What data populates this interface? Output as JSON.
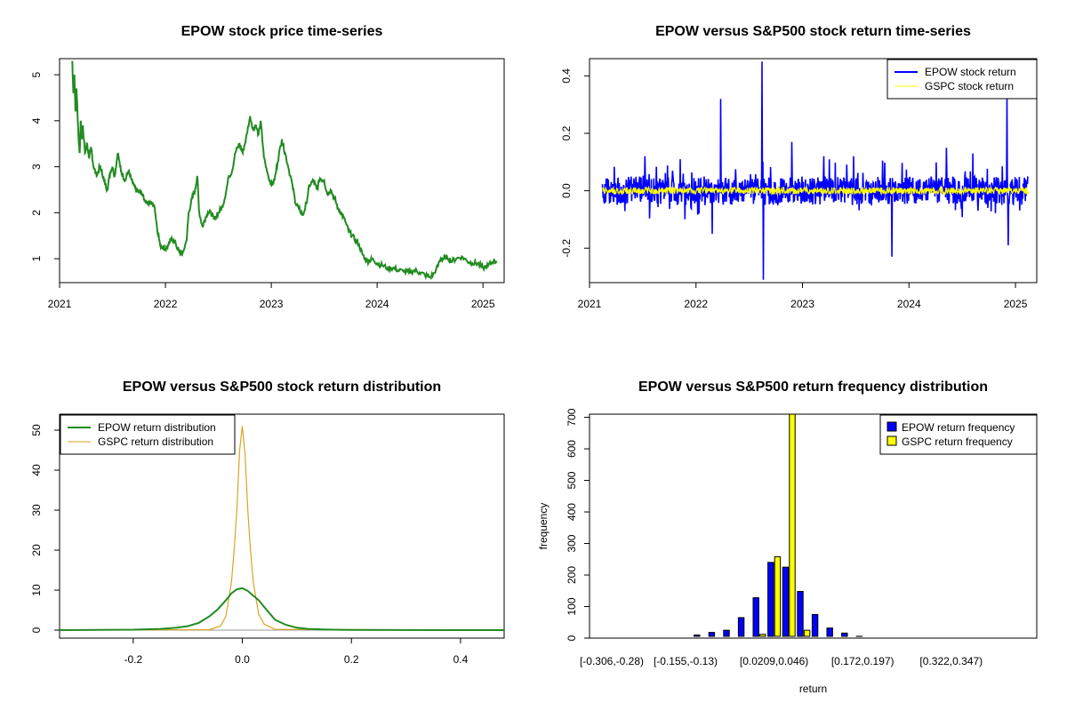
{
  "chart_data": [
    {
      "id": "price",
      "type": "line",
      "title": "EPOW stock price time-series",
      "xlim": [
        2021.0,
        2025.2
      ],
      "ylim": [
        0.48,
        5.35
      ],
      "xticks": [
        2021,
        2022,
        2023,
        2024,
        2025
      ],
      "yticks": [
        1,
        2,
        3,
        4,
        5
      ],
      "series": [
        {
          "color": "#228B22",
          "x": [
            2021.12,
            2021.13,
            2021.14,
            2021.15,
            2021.16,
            2021.18,
            2021.19,
            2021.2,
            2021.21,
            2021.22,
            2021.24,
            2021.26,
            2021.28,
            2021.3,
            2021.32,
            2021.35,
            2021.38,
            2021.4,
            2021.42,
            2021.45,
            2021.48,
            2021.5,
            2021.52,
            2021.55,
            2021.58,
            2021.6,
            2021.62,
            2021.65,
            2021.68,
            2021.7,
            2021.72,
            2021.75,
            2021.78,
            2021.8,
            2021.82,
            2021.85,
            2021.88,
            2021.9,
            2021.92,
            2021.95,
            2021.98,
            2022.0,
            2022.03,
            2022.06,
            2022.1,
            2022.13,
            2022.16,
            2022.2,
            2022.22,
            2022.25,
            2022.28,
            2022.3,
            2022.32,
            2022.35,
            2022.38,
            2022.4,
            2022.43,
            2022.46,
            2022.5,
            2022.53,
            2022.56,
            2022.6,
            2022.63,
            2022.66,
            2022.7,
            2022.73,
            2022.76,
            2022.8,
            2022.83,
            2022.85,
            2022.88,
            2022.9,
            2022.93,
            2022.96,
            2023.0,
            2023.03,
            2023.06,
            2023.1,
            2023.13,
            2023.16,
            2023.2,
            2023.23,
            2023.26,
            2023.3,
            2023.33,
            2023.36,
            2023.4,
            2023.43,
            2023.46,
            2023.5,
            2023.53,
            2023.56,
            2023.6,
            2023.63,
            2023.66,
            2023.7,
            2023.73,
            2023.76,
            2023.8,
            2023.83,
            2023.86,
            2023.9,
            2023.93,
            2023.96,
            2024.0,
            2024.05,
            2024.1,
            2024.15,
            2024.2,
            2024.25,
            2024.3,
            2024.35,
            2024.4,
            2024.45,
            2024.5,
            2024.55,
            2024.6,
            2024.63,
            2024.66,
            2024.7,
            2024.75,
            2024.8,
            2024.85,
            2024.9,
            2024.95,
            2025.0,
            2025.05,
            2025.1,
            2025.13
          ],
          "y": [
            5.3,
            4.6,
            5.0,
            4.2,
            4.7,
            3.6,
            3.3,
            4.0,
            3.6,
            3.9,
            3.3,
            3.5,
            3.2,
            3.4,
            3.0,
            2.8,
            3.0,
            2.9,
            2.7,
            2.5,
            2.9,
            3.0,
            2.8,
            3.3,
            2.9,
            2.8,
            2.7,
            2.9,
            2.7,
            2.6,
            2.5,
            2.45,
            2.4,
            2.3,
            2.25,
            2.2,
            2.2,
            2.1,
            1.7,
            1.3,
            1.25,
            1.2,
            1.3,
            1.45,
            1.3,
            1.15,
            1.1,
            1.4,
            2.0,
            2.3,
            2.5,
            2.8,
            2.0,
            1.7,
            1.9,
            2.0,
            2.0,
            1.85,
            2.0,
            2.1,
            2.3,
            2.8,
            2.9,
            3.3,
            3.5,
            3.3,
            3.6,
            4.1,
            3.8,
            3.9,
            3.7,
            4.0,
            3.2,
            2.9,
            2.6,
            2.7,
            3.1,
            3.6,
            3.3,
            3.0,
            2.6,
            2.2,
            2.1,
            1.95,
            2.2,
            2.6,
            2.7,
            2.5,
            2.75,
            2.7,
            2.4,
            2.5,
            2.3,
            2.1,
            2.0,
            1.8,
            1.6,
            1.5,
            1.4,
            1.3,
            1.1,
            0.95,
            0.95,
            1.0,
            0.9,
            0.85,
            0.8,
            0.8,
            0.75,
            0.72,
            0.7,
            0.75,
            0.7,
            0.65,
            0.6,
            0.7,
            1.0,
            1.0,
            1.05,
            0.95,
            1.0,
            1.05,
            0.95,
            0.9,
            0.9,
            0.8,
            0.85,
            0.95,
            0.95
          ]
        }
      ]
    },
    {
      "id": "returns",
      "type": "line",
      "title": "EPOW versus S&P500 stock return time-series",
      "xlim": [
        2021.0,
        2025.2
      ],
      "ylim": [
        -0.32,
        0.46
      ],
      "xticks": [
        2021,
        2022,
        2023,
        2024,
        2025
      ],
      "yticks": [
        -0.2,
        0.0,
        0.2,
        0.4
      ],
      "ytick_labels": [
        "-0.2",
        "0.0",
        "0.2",
        "0.4"
      ],
      "legend_position": "top-right",
      "series": [
        {
          "name": "EPOW stock return",
          "color": "#0000FF",
          "amplitude": 0.05,
          "spikes": [
            [
              2021.52,
              0.12
            ],
            [
              2021.85,
              0.11
            ],
            [
              2022.15,
              -0.15
            ],
            [
              2022.23,
              0.32
            ],
            [
              2022.62,
              0.45
            ],
            [
              2022.63,
              -0.31
            ],
            [
              2022.9,
              0.17
            ],
            [
              2023.2,
              0.12
            ],
            [
              2023.48,
              0.12
            ],
            [
              2023.84,
              -0.23
            ],
            [
              2024.35,
              0.15
            ],
            [
              2024.6,
              0.13
            ],
            [
              2024.92,
              0.32
            ],
            [
              2024.93,
              -0.19
            ]
          ]
        },
        {
          "name": "GSPC stock return",
          "color": "#FFFF00",
          "amplitude": 0.012
        }
      ]
    },
    {
      "id": "density",
      "type": "line",
      "title": "EPOW versus S&P500 stock return distribution",
      "xlim": [
        -0.335,
        0.48
      ],
      "ylim": [
        -2,
        54
      ],
      "xticks": [
        -0.2,
        0.0,
        0.2,
        0.4
      ],
      "xtick_labels": [
        "-0.2",
        "0.0",
        "0.2",
        "0.4"
      ],
      "yticks": [
        0,
        10,
        20,
        30,
        40,
        50
      ],
      "legend_position": "top-left",
      "series": [
        {
          "name": "EPOW return distribution",
          "color": "#228B22",
          "x": [
            -0.335,
            -0.2,
            -0.15,
            -0.12,
            -0.1,
            -0.08,
            -0.06,
            -0.045,
            -0.03,
            -0.02,
            -0.01,
            0.0,
            0.01,
            0.02,
            0.03,
            0.045,
            0.06,
            0.08,
            0.1,
            0.12,
            0.15,
            0.2,
            0.3,
            0.48
          ],
          "y": [
            0,
            0.1,
            0.3,
            0.6,
            1.0,
            1.8,
            3.5,
            5.2,
            7.5,
            9.2,
            10.2,
            10.5,
            9.8,
            8.6,
            7.5,
            5.0,
            2.6,
            1.3,
            0.6,
            0.3,
            0.15,
            0.05,
            0.02,
            0
          ]
        },
        {
          "name": "GSPC return distribution",
          "color": "#DAA520",
          "x": [
            -0.335,
            -0.06,
            -0.04,
            -0.03,
            -0.02,
            -0.015,
            -0.01,
            -0.005,
            0.0,
            0.005,
            0.01,
            0.015,
            0.02,
            0.03,
            0.04,
            0.06,
            0.48
          ],
          "y": [
            0,
            0.1,
            1.0,
            3.5,
            12,
            20,
            30,
            45,
            51,
            44,
            30,
            20,
            12,
            4,
            1.5,
            0.2,
            0
          ]
        }
      ]
    },
    {
      "id": "frequency",
      "type": "bar",
      "title": "EPOW versus S&P500 return frequency distribution",
      "xlabel": "return",
      "ylabel": "frequency",
      "ylim": [
        0,
        710
      ],
      "yticks": [
        0,
        100,
        200,
        300,
        400,
        500,
        600,
        700
      ],
      "legend_position": "top-right",
      "categories": [
        "[-0.306,-0.28)",
        "",
        "",
        "",
        "",
        "[-0.155,-0.13)",
        "",
        "",
        "",
        "",
        "",
        "[0.0209,0.046)",
        "",
        "",
        "",
        "",
        "",
        "[0.172,0.197)",
        "",
        "",
        "",
        "",
        "",
        "[0.322,0.347)",
        "",
        "",
        "",
        "",
        "",
        ""
      ],
      "series": [
        {
          "name": "EPOW return frequency",
          "color": "#0000FF",
          "values": [
            2,
            1,
            1,
            2,
            3,
            5,
            10,
            18,
            25,
            65,
            128,
            240,
            225,
            148,
            75,
            32,
            16,
            6,
            4,
            3,
            2,
            2,
            2,
            3,
            2,
            2,
            1,
            1,
            1,
            1
          ]
        },
        {
          "name": "GSPC return frequency",
          "color": "#FFFF00",
          "values": [
            0,
            0,
            0,
            0,
            0,
            0,
            0,
            0,
            0,
            0,
            12,
            258,
            710,
            25,
            0,
            0,
            0,
            0,
            0,
            0,
            0,
            0,
            0,
            0,
            0,
            0,
            0,
            0,
            0,
            0
          ]
        }
      ]
    }
  ]
}
